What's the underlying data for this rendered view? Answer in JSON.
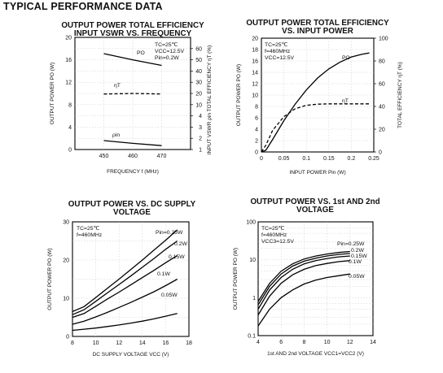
{
  "page_title": "TYPICAL PERFORMANCE DATA",
  "chart_data": [
    {
      "type": "line",
      "title": "OUTPUT POWER TOTAL EFFICIENCY",
      "subtitle": "INPUT VSWR VS. FREQUENCY",
      "xlabel": "FREQUENCY  f  (MHz)",
      "ylabel": "OUTPUT POWER  PO  (W)",
      "y2label": "INPUT VSWR  ρin   TOTAL EFFICIENCY  ηT  (%)",
      "xlim": [
        440,
        480
      ],
      "ylim": [
        0,
        20
      ],
      "xticks": [
        "450",
        "460",
        "470"
      ],
      "yticks": [
        "0",
        "4",
        "8",
        "12",
        "16",
        "20"
      ],
      "y2ticks": [
        "1",
        "2",
        "3",
        "4",
        "10",
        "20",
        "30",
        "40",
        "50",
        "60"
      ],
      "grid": true,
      "legend": "top-right",
      "annotations": [
        "TC=25℃",
        "VCC=12.5V",
        "Pin=0.2W"
      ],
      "series": [
        {
          "name": "PO",
          "style": "solid",
          "x": [
            450,
            460,
            470
          ],
          "y": [
            17.1,
            16.0,
            15.0
          ]
        },
        {
          "name": "ηT",
          "style": "dashed",
          "x": [
            450,
            460,
            470
          ],
          "y": [
            9.9,
            10.0,
            9.9
          ]
        },
        {
          "name": "ρin",
          "style": "solid",
          "x": [
            450,
            460,
            470
          ],
          "y": [
            1.6,
            1.1,
            0.7
          ]
        }
      ]
    },
    {
      "type": "line",
      "title": "OUTPUT POWER TOTAL EFFICIENCY",
      "subtitle": "VS. INPUT POWER",
      "xlabel": "INPUT POWER  Pin  (W)",
      "ylabel": "OUTPUT POWER  PO  (W)",
      "y2label": "TOTAL EFFICIENCY  ηT  (%)",
      "xlim": [
        0,
        0.25
      ],
      "ylim": [
        0,
        20
      ],
      "y2lim": [
        0,
        100
      ],
      "xticks": [
        "0",
        "0.05",
        "0.1",
        "0.15",
        "0.2",
        "0.25"
      ],
      "yticks": [
        "0",
        "2",
        "4",
        "6",
        "8",
        "10",
        "12",
        "14",
        "16",
        "18",
        "20"
      ],
      "y2ticks": [
        "0",
        "20",
        "40",
        "60",
        "80",
        "100"
      ],
      "grid": true,
      "legend": "top-right",
      "annotations": [
        "TC=25℃",
        "f=460MHz",
        "VCC=12.5V"
      ],
      "series": [
        {
          "name": "PO",
          "style": "solid",
          "x": [
            0,
            0.01,
            0.025,
            0.05,
            0.075,
            0.1,
            0.125,
            0.15,
            0.175,
            0.2,
            0.225,
            0.24
          ],
          "y": [
            0,
            0.3,
            2.2,
            5.5,
            8.4,
            10.9,
            13.0,
            14.6,
            15.8,
            16.7,
            17.2,
            17.4
          ]
        },
        {
          "name": "ηT",
          "style": "dashed",
          "x": [
            0,
            0.01,
            0.025,
            0.05,
            0.075,
            0.1,
            0.125,
            0.15,
            0.175,
            0.2,
            0.225,
            0.24
          ],
          "y": [
            0,
            1.2,
            3.8,
            6.2,
            7.6,
            8.2,
            8.4,
            8.45,
            8.45,
            8.45,
            8.45,
            8.45
          ]
        }
      ]
    },
    {
      "type": "line",
      "title": "OUTPUT POWER VS. DC SUPPLY",
      "subtitle": "VOLTAGE",
      "xlabel": "DC SUPPLY VOLTAGE  VCC  (V)",
      "ylabel": "OUTPUT POWER  PO  (W)",
      "xlim": [
        8,
        18
      ],
      "ylim": [
        0,
        30
      ],
      "xticks": [
        "8",
        "10",
        "12",
        "14",
        "16",
        "18"
      ],
      "yticks": [
        "0",
        "10",
        "20",
        "30"
      ],
      "grid": true,
      "legend": "top-right",
      "legend_title": "Pin=0.25W",
      "annotations": [
        "TC=25℃",
        "f=460MHz"
      ],
      "series": [
        {
          "name": "0.25W",
          "style": "solid",
          "x": [
            8,
            9,
            10,
            11,
            12,
            13,
            14,
            15,
            16,
            17
          ],
          "y": [
            6.5,
            7.8,
            10.2,
            12.6,
            15.0,
            17.5,
            20.0,
            22.6,
            25.2,
            27.9
          ]
        },
        {
          "name": "0.2W",
          "style": "solid",
          "x": [
            8,
            9,
            10,
            11,
            12,
            13,
            14,
            15,
            16,
            17
          ],
          "y": [
            5.7,
            7.0,
            9.2,
            11.4,
            13.6,
            15.8,
            18.1,
            20.4,
            22.8,
            25.0
          ]
        },
        {
          "name": "0.15W",
          "style": "solid",
          "x": [
            8,
            9,
            10,
            11,
            12,
            13,
            14,
            15,
            16,
            17
          ],
          "y": [
            5.0,
            6.0,
            7.9,
            9.8,
            11.6,
            13.5,
            15.4,
            17.3,
            19.3,
            21.2
          ]
        },
        {
          "name": "0.1W",
          "style": "solid",
          "x": [
            8,
            9,
            10,
            11,
            12,
            13,
            14,
            15,
            16,
            17
          ],
          "y": [
            3.2,
            4.0,
            5.1,
            6.3,
            7.6,
            8.9,
            10.3,
            11.7,
            13.3,
            15.0
          ]
        },
        {
          "name": "0.05W",
          "style": "solid",
          "x": [
            8,
            9,
            10,
            11,
            12,
            13,
            14,
            15,
            16,
            17
          ],
          "y": [
            1.6,
            1.9,
            2.2,
            2.6,
            3.0,
            3.5,
            4.0,
            4.6,
            5.3,
            6.0
          ]
        }
      ]
    },
    {
      "type": "line",
      "title": "OUTPUT POWER VS. 1st AND 2nd",
      "subtitle": "VOLTAGE",
      "xlabel": "1st AND 2nd VOLTAGE  VCC1=VCC2  (V)",
      "ylabel": "OUTPUT POWER  PO  (W)",
      "xlim": [
        4,
        14
      ],
      "ylim": [
        0.1,
        100
      ],
      "yscale": "log",
      "xticks": [
        "4",
        "6",
        "8",
        "10",
        "12",
        "14"
      ],
      "yticks": [
        "0.1",
        "1",
        "10",
        "100"
      ],
      "grid": true,
      "legend": "top-right",
      "legend_title": "Pin=0.25W",
      "annotations": [
        "TC=25℃",
        "f=460MHz",
        "VCC3=12.5V"
      ],
      "series": [
        {
          "name": "0.25W",
          "style": "solid",
          "x": [
            4,
            5,
            6,
            7,
            8,
            9,
            10,
            11,
            12
          ],
          "y": [
            0.8,
            2.4,
            5.0,
            7.8,
            10.5,
            12.5,
            14.2,
            15.6,
            16.5
          ]
        },
        {
          "name": "0.2W",
          "style": "solid",
          "x": [
            4,
            5,
            6,
            7,
            8,
            9,
            10,
            11,
            12
          ],
          "y": [
            0.65,
            2.0,
            4.2,
            6.8,
            9.2,
            11.0,
            12.6,
            13.8,
            14.7
          ]
        },
        {
          "name": "0.15W",
          "style": "solid",
          "x": [
            4,
            5,
            6,
            7,
            8,
            9,
            10,
            11,
            12
          ],
          "y": [
            0.5,
            1.6,
            3.4,
            5.6,
            7.8,
            9.5,
            10.8,
            11.9,
            12.6
          ]
        },
        {
          "name": "0.1W",
          "style": "solid",
          "x": [
            4,
            5,
            6,
            7,
            8,
            9,
            10,
            11,
            12
          ],
          "y": [
            0.35,
            1.1,
            2.4,
            4.0,
            5.6,
            7.0,
            8.0,
            8.9,
            9.5
          ]
        },
        {
          "name": "0.05W",
          "style": "solid",
          "x": [
            4,
            5,
            6,
            7,
            8,
            9,
            10,
            11,
            12
          ],
          "y": [
            0.18,
            0.5,
            1.0,
            1.6,
            2.3,
            2.9,
            3.4,
            3.8,
            4.2
          ]
        }
      ]
    }
  ]
}
